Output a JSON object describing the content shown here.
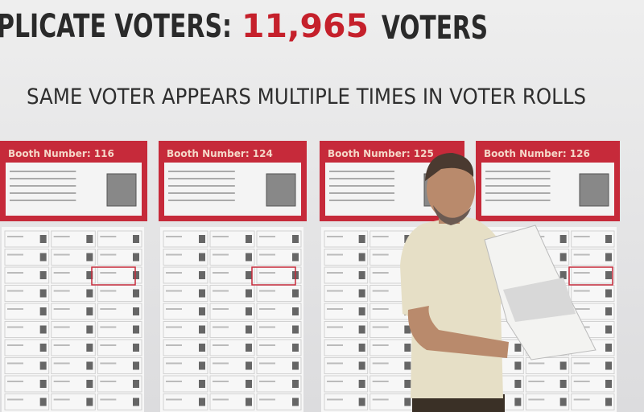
{
  "headline": {
    "prefix": "PLICATE VOTERS:",
    "number": "11,965",
    "suffix": "VOTERS"
  },
  "subtitle": "SAME VOTER APPEARS MULTIPLE TIMES IN VOTER ROLLS",
  "booths": [
    {
      "label": "Booth Number: 116"
    },
    {
      "label": "Booth Number: 124"
    },
    {
      "label": "Booth Number: 125"
    },
    {
      "label": "Booth Number: 126"
    }
  ]
}
